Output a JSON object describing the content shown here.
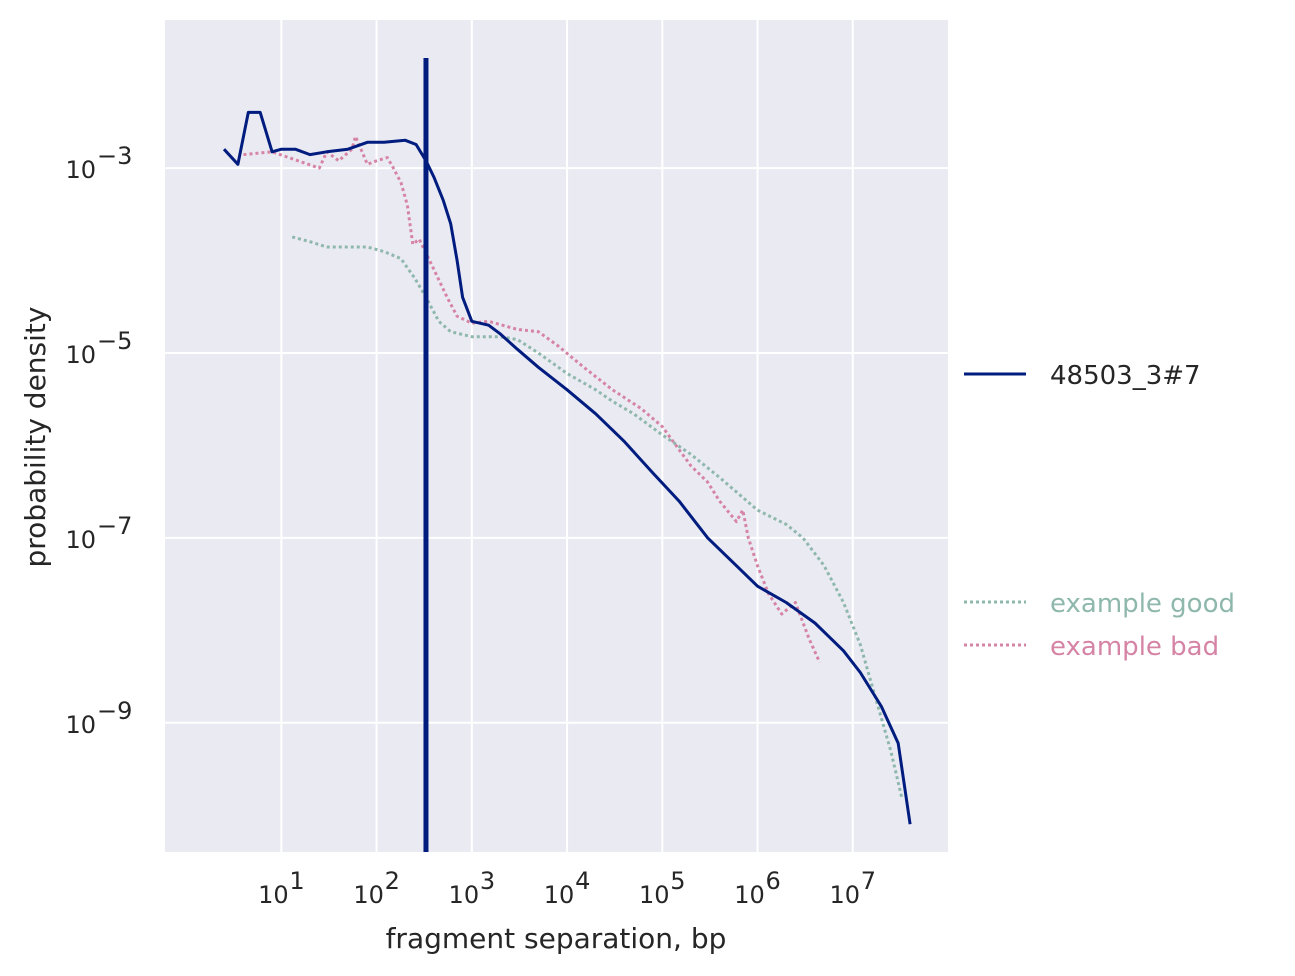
{
  "chart_data": {
    "type": "line",
    "xlabel": "fragment separation, bp",
    "ylabel": "probability density",
    "x_scale": "log",
    "y_scale": "log",
    "xlim": [
      0.6,
      100000000.0
    ],
    "ylim": [
      4e-11,
      0.04
    ],
    "grid": true,
    "x_ticks": [
      {
        "value": 10,
        "base": "10",
        "exp": "1"
      },
      {
        "value": 100,
        "base": "10",
        "exp": "2"
      },
      {
        "value": 1000,
        "base": "10",
        "exp": "3"
      },
      {
        "value": 10000,
        "base": "10",
        "exp": "4"
      },
      {
        "value": 100000,
        "base": "10",
        "exp": "5"
      },
      {
        "value": 1000000,
        "base": "10",
        "exp": "6"
      },
      {
        "value": 10000000,
        "base": "10",
        "exp": "7"
      }
    ],
    "y_ticks": [
      {
        "value": 0.001,
        "base": "10",
        "exp": "−3"
      },
      {
        "value": 1e-05,
        "base": "10",
        "exp": "−5"
      },
      {
        "value": 1e-07,
        "base": "10",
        "exp": "−7"
      },
      {
        "value": 1e-09,
        "base": "10",
        "exp": "−9"
      }
    ],
    "vline": {
      "x": 330,
      "color": "#001c7f"
    },
    "series": [
      {
        "name": "example good",
        "color": "#8fb8ad",
        "style": "dotted",
        "points": [
          [
            13,
            0.00018
          ],
          [
            20,
            0.00016
          ],
          [
            30,
            0.00014
          ],
          [
            50,
            0.00014
          ],
          [
            80,
            0.00014
          ],
          [
            120,
            0.000125
          ],
          [
            180,
            0.000105
          ],
          [
            250,
            6.5e-05
          ],
          [
            330,
            4e-05
          ],
          [
            450,
            2.2e-05
          ],
          [
            600,
            1.7e-05
          ],
          [
            1000,
            1.5e-05
          ],
          [
            2000,
            1.5e-05
          ],
          [
            3000,
            1.4e-05
          ],
          [
            5000,
            1e-05
          ],
          [
            10000,
            6e-06
          ],
          [
            20000,
            4e-06
          ],
          [
            30000,
            3e-06
          ],
          [
            50000,
            2.2e-06
          ],
          [
            100000,
            1.3e-06
          ],
          [
            200000,
            8e-07
          ],
          [
            400000,
            4.5e-07
          ],
          [
            1000000,
            2e-07
          ],
          [
            2000000,
            1.4e-07
          ],
          [
            3000000,
            1e-07
          ],
          [
            5000000,
            5e-08
          ],
          [
            8000000,
            2e-08
          ],
          [
            12000000,
            7e-09
          ],
          [
            17000000,
            2e-09
          ],
          [
            25000000,
            5e-10
          ],
          [
            33000000,
            1.5e-10
          ]
        ]
      },
      {
        "name": "example bad",
        "color": "#d684a6",
        "style": "dotted",
        "points": [
          [
            4,
            0.0014
          ],
          [
            8,
            0.0015
          ],
          [
            15,
            0.0012
          ],
          [
            25,
            0.001
          ],
          [
            30,
            0.0015
          ],
          [
            40,
            0.0012
          ],
          [
            55,
            0.0016
          ],
          [
            60,
            0.0022
          ],
          [
            80,
            0.0011
          ],
          [
            100,
            0.0012
          ],
          [
            130,
            0.0013
          ],
          [
            150,
            0.001
          ],
          [
            180,
            0.0007
          ],
          [
            210,
            0.0004
          ],
          [
            240,
            0.00015
          ],
          [
            280,
            0.00017
          ],
          [
            330,
            0.00012
          ],
          [
            400,
            8e-05
          ],
          [
            550,
            4e-05
          ],
          [
            700,
            2.5e-05
          ],
          [
            1000,
            2.1e-05
          ],
          [
            1500,
            2.2e-05
          ],
          [
            3000,
            1.8e-05
          ],
          [
            5000,
            1.7e-05
          ],
          [
            8000,
            1.2e-05
          ],
          [
            15000,
            7e-06
          ],
          [
            30000,
            4e-06
          ],
          [
            60000,
            2.5e-06
          ],
          [
            100000,
            1.6e-06
          ],
          [
            150000,
            9e-07
          ],
          [
            200000,
            6e-07
          ],
          [
            300000,
            4e-07
          ],
          [
            400000,
            2.5e-07
          ],
          [
            600000,
            1.5e-07
          ],
          [
            700000,
            2e-07
          ],
          [
            800000,
            1e-07
          ],
          [
            1000000,
            5e-08
          ],
          [
            1300000,
            2.5e-08
          ],
          [
            1800000,
            1.5e-08
          ],
          [
            2500000,
            2e-08
          ],
          [
            3500000,
            8e-09
          ],
          [
            4500000,
            4.5e-09
          ]
        ]
      },
      {
        "name": "48503_3#7",
        "color": "#001c7f",
        "style": "solid",
        "points": [
          [
            2.5,
            0.0016
          ],
          [
            3.5,
            0.0011
          ],
          [
            4.5,
            0.004
          ],
          [
            6,
            0.004
          ],
          [
            8,
            0.0015
          ],
          [
            10,
            0.0016
          ],
          [
            14,
            0.0016
          ],
          [
            20,
            0.0014
          ],
          [
            30,
            0.0015
          ],
          [
            50,
            0.0016
          ],
          [
            80,
            0.0019
          ],
          [
            120,
            0.0019
          ],
          [
            200,
            0.002
          ],
          [
            260,
            0.0018
          ],
          [
            330,
            0.0012
          ],
          [
            400,
            0.0008
          ],
          [
            500,
            0.00045
          ],
          [
            600,
            0.00025
          ],
          [
            700,
            0.0001
          ],
          [
            800,
            4e-05
          ],
          [
            1000,
            2.2e-05
          ],
          [
            1500,
            2e-05
          ],
          [
            2000,
            1.6e-05
          ],
          [
            3000,
            1.1e-05
          ],
          [
            5000,
            7e-06
          ],
          [
            10000,
            4e-06
          ],
          [
            20000,
            2.2e-06
          ],
          [
            40000,
            1.1e-06
          ],
          [
            80000,
            5e-07
          ],
          [
            150000,
            2.5e-07
          ],
          [
            300000,
            1e-07
          ],
          [
            600000,
            5e-08
          ],
          [
            1000000,
            3e-08
          ],
          [
            2000000,
            2e-08
          ],
          [
            4000000,
            1.2e-08
          ],
          [
            8000000,
            6e-09
          ],
          [
            12000000,
            3.5e-09
          ],
          [
            20000000,
            1.5e-09
          ],
          [
            30000000,
            6e-10
          ],
          [
            40000000,
            8e-11
          ]
        ]
      }
    ],
    "legend": {
      "placement": "right",
      "entries": [
        {
          "label": "48503_3#7",
          "color": "#001c7f",
          "text_color": "#262626",
          "style": "solid"
        },
        {
          "label": "example good",
          "color": "#8fb8ad",
          "text_color": "#8fb8ad",
          "style": "dotted"
        },
        {
          "label": "example bad",
          "color": "#d684a6",
          "text_color": "#d684a6",
          "style": "dotted"
        }
      ]
    }
  }
}
